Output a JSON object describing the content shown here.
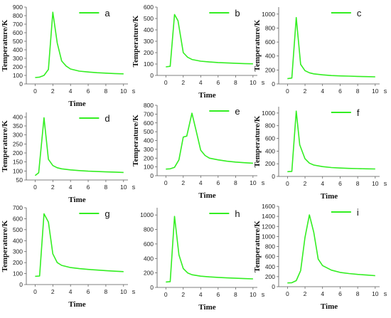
{
  "chart_data": [
    {
      "type": "line",
      "series": [
        {
          "name": "a",
          "values": [
            [
              0,
              75
            ],
            [
              0.5,
              80
            ],
            [
              1,
              100
            ],
            [
              1.5,
              170
            ],
            [
              2,
              840
            ],
            [
              2.5,
              480
            ],
            [
              3,
              270
            ],
            [
              3.5,
              210
            ],
            [
              4,
              175
            ],
            [
              5,
              150
            ],
            [
              6,
              140
            ],
            [
              7,
              132
            ],
            [
              8,
              127
            ],
            [
              9,
              122
            ],
            [
              10,
              118
            ]
          ]
        }
      ],
      "xlabel": "Time",
      "ylabel": "Temperature/K",
      "xunit": "s",
      "xlim": [
        -1,
        10.5
      ],
      "ylim": [
        0,
        900
      ],
      "xticks": [
        0,
        2,
        4,
        6,
        8,
        10
      ],
      "yticks": [
        0,
        100,
        200,
        300,
        400,
        500,
        600,
        700,
        800,
        900
      ],
      "color": "#33ee22"
    },
    {
      "type": "line",
      "series": [
        {
          "name": "b",
          "values": [
            [
              0,
              75
            ],
            [
              0.5,
              80
            ],
            [
              1,
              535
            ],
            [
              1.4,
              480
            ],
            [
              2,
              200
            ],
            [
              2.5,
              160
            ],
            [
              3,
              140
            ],
            [
              4,
              125
            ],
            [
              5,
              118
            ],
            [
              6,
              113
            ],
            [
              7,
              110
            ],
            [
              8,
              107
            ],
            [
              9,
              104
            ],
            [
              10,
              102
            ]
          ]
        }
      ],
      "xlabel": "Time",
      "ylabel": "Temperature/K",
      "xunit": "s",
      "xlim": [
        -1,
        10.5
      ],
      "ylim": [
        0,
        600
      ],
      "xticks": [
        0,
        2,
        4,
        6,
        8,
        10
      ],
      "yticks": [
        0,
        100,
        200,
        300,
        400,
        500,
        600
      ],
      "color": "#33ee22"
    },
    {
      "type": "line",
      "series": [
        {
          "name": "c",
          "values": [
            [
              0,
              75
            ],
            [
              0.5,
              85
            ],
            [
              1,
              950
            ],
            [
              1.5,
              280
            ],
            [
              2,
              190
            ],
            [
              2.5,
              160
            ],
            [
              3,
              145
            ],
            [
              4,
              130
            ],
            [
              5,
              120
            ],
            [
              6,
              115
            ],
            [
              7,
              112
            ],
            [
              8,
              108
            ],
            [
              9,
              105
            ],
            [
              10,
              102
            ]
          ]
        }
      ],
      "xlabel": "",
      "ylabel": "Temperature/K",
      "xunit": "s",
      "xlim": [
        -1,
        10.5
      ],
      "ylim": [
        0,
        1100
      ],
      "xticks": [
        0,
        2,
        4,
        6,
        8,
        10
      ],
      "yticks": [
        0,
        200,
        400,
        600,
        800,
        1000
      ],
      "color": "#33ee22"
    },
    {
      "type": "line",
      "series": [
        {
          "name": "d",
          "values": [
            [
              0,
              75
            ],
            [
              0.4,
              90
            ],
            [
              1,
              395
            ],
            [
              1.5,
              165
            ],
            [
              2,
              130
            ],
            [
              2.5,
              118
            ],
            [
              3,
              112
            ],
            [
              4,
              106
            ],
            [
              5,
              102
            ],
            [
              6,
              99
            ],
            [
              7,
              97
            ],
            [
              8,
              95
            ],
            [
              9,
              94
            ],
            [
              10,
              92
            ]
          ]
        }
      ],
      "xlabel": "Time",
      "ylabel": "Temperature/K",
      "xunit": "s",
      "xlim": [
        -1,
        10.5
      ],
      "ylim": [
        50,
        425
      ],
      "xticks": [
        0,
        2,
        4,
        6,
        8,
        10
      ],
      "yticks": [
        50,
        100,
        150,
        200,
        250,
        300,
        350,
        400
      ],
      "color": "#33ee22"
    },
    {
      "type": "line",
      "series": [
        {
          "name": "e",
          "values": [
            [
              0,
              75
            ],
            [
              0.5,
              78
            ],
            [
              1,
              95
            ],
            [
              1.5,
              180
            ],
            [
              2,
              440
            ],
            [
              2.4,
              450
            ],
            [
              3,
              710
            ],
            [
              3.5,
              500
            ],
            [
              4,
              290
            ],
            [
              4.5,
              230
            ],
            [
              5,
              200
            ],
            [
              6,
              180
            ],
            [
              7,
              165
            ],
            [
              8,
              155
            ],
            [
              9,
              148
            ],
            [
              10,
              142
            ]
          ]
        }
      ],
      "xlabel": "Time",
      "ylabel": "Temperature/K",
      "xunit": "s",
      "xlim": [
        -1,
        10.5
      ],
      "ylim": [
        0,
        800
      ],
      "xticks": [
        0,
        2,
        4,
        6,
        8,
        10
      ],
      "yticks": [
        0,
        100,
        200,
        300,
        400,
        500,
        600,
        700,
        800
      ],
      "color": "#33ee22"
    },
    {
      "type": "line",
      "series": [
        {
          "name": "f",
          "values": [
            [
              0,
              75
            ],
            [
              0.5,
              80
            ],
            [
              1,
              1030
            ],
            [
              1.4,
              500
            ],
            [
              2,
              280
            ],
            [
              2.5,
              210
            ],
            [
              3,
              180
            ],
            [
              4,
              155
            ],
            [
              5,
              140
            ],
            [
              6,
              132
            ],
            [
              7,
              127
            ],
            [
              8,
              123
            ],
            [
              9,
              120
            ],
            [
              10,
              118
            ]
          ]
        }
      ],
      "xlabel": "Time",
      "ylabel": "Temperature/K",
      "xunit": "s",
      "xlim": [
        -1,
        10.5
      ],
      "ylim": [
        0,
        1100
      ],
      "xticks": [
        0,
        2,
        4,
        6,
        8,
        10
      ],
      "yticks": [
        0,
        200,
        400,
        600,
        800,
        1000
      ],
      "color": "#33ee22"
    },
    {
      "type": "line",
      "series": [
        {
          "name": "g",
          "values": [
            [
              0,
              75
            ],
            [
              0.5,
              78
            ],
            [
              1,
              645
            ],
            [
              1.5,
              570
            ],
            [
              2,
              280
            ],
            [
              2.5,
              200
            ],
            [
              3,
              175
            ],
            [
              4,
              155
            ],
            [
              5,
              145
            ],
            [
              6,
              138
            ],
            [
              7,
              132
            ],
            [
              8,
              127
            ],
            [
              9,
              122
            ],
            [
              10,
              118
            ]
          ]
        }
      ],
      "xlabel": "Time",
      "ylabel": "Temperature/K",
      "xunit": "s",
      "xlim": [
        -1,
        10.5
      ],
      "ylim": [
        0,
        700
      ],
      "xticks": [
        0,
        2,
        4,
        6,
        8,
        10
      ],
      "yticks": [
        0,
        100,
        200,
        300,
        400,
        500,
        600,
        700
      ],
      "color": "#33ee22"
    },
    {
      "type": "line",
      "series": [
        {
          "name": "h",
          "values": [
            [
              0,
              75
            ],
            [
              0.5,
              80
            ],
            [
              1,
              980
            ],
            [
              1.5,
              450
            ],
            [
              2,
              260
            ],
            [
              2.5,
              200
            ],
            [
              3,
              175
            ],
            [
              4,
              155
            ],
            [
              5,
              145
            ],
            [
              6,
              138
            ],
            [
              7,
              132
            ],
            [
              8,
              127
            ],
            [
              9,
              122
            ],
            [
              10,
              118
            ]
          ]
        }
      ],
      "xlabel": "Time",
      "ylabel": "",
      "xunit": "s",
      "xlim": [
        -1,
        10.5
      ],
      "ylim": [
        0,
        1100
      ],
      "xticks": [
        0,
        2,
        4,
        6,
        8,
        10
      ],
      "yticks": [
        0,
        200,
        400,
        600,
        800,
        1000
      ],
      "color": "#33ee22"
    },
    {
      "type": "line",
      "series": [
        {
          "name": "i",
          "values": [
            [
              0,
              75
            ],
            [
              0.5,
              80
            ],
            [
              1,
              120
            ],
            [
              1.5,
              320
            ],
            [
              2,
              980
            ],
            [
              2.5,
              1430
            ],
            [
              3,
              1080
            ],
            [
              3.5,
              550
            ],
            [
              4,
              420
            ],
            [
              5,
              330
            ],
            [
              6,
              285
            ],
            [
              7,
              262
            ],
            [
              8,
              245
            ],
            [
              9,
              232
            ],
            [
              10,
              220
            ]
          ]
        }
      ],
      "xlabel": "Time",
      "ylabel": "Temperature/K",
      "xunit": "s",
      "xlim": [
        -1,
        10.5
      ],
      "ylim": [
        0,
        1600
      ],
      "xticks": [
        0,
        2,
        4,
        6,
        8,
        10
      ],
      "yticks": [
        0,
        200,
        400,
        600,
        800,
        1000,
        1200,
        1400,
        1600
      ],
      "color": "#33ee22"
    }
  ]
}
